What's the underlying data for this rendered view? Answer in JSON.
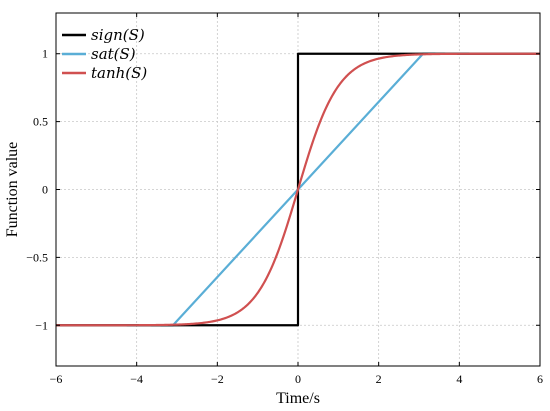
{
  "chart_data": {
    "type": "line",
    "title": "",
    "xlabel": "Time/s",
    "ylabel": "Function value",
    "xlim": [
      -6,
      6
    ],
    "ylim": [
      -1.3,
      1.3
    ],
    "xticks": [
      -6,
      -4,
      -2,
      0,
      2,
      4,
      6
    ],
    "yticks": [
      -1,
      -0.5,
      0,
      0.5,
      1
    ],
    "xtick_labels": [
      "−6",
      "−4",
      "−2",
      "0",
      "2",
      "4",
      "6"
    ],
    "ytick_labels": [
      "−1",
      "−0.5",
      "0",
      "0.5",
      "1"
    ],
    "grid": true,
    "legend_position": "top-left",
    "series": [
      {
        "name": "sign(S)",
        "color": "#000000",
        "x": [
          -6,
          -3,
          -1,
          0,
          0,
          1,
          3,
          6
        ],
        "y": [
          -1,
          -1,
          -1,
          -1,
          1,
          1,
          1,
          1
        ]
      },
      {
        "name": "sat(S)",
        "color": "#5aaed6",
        "x": [
          -6,
          -3.1,
          0,
          3.1,
          6
        ],
        "y": [
          -1,
          -1,
          0,
          1,
          1
        ]
      },
      {
        "name": "tanh(S)",
        "color": "#d05050",
        "x": [
          -6,
          -4,
          -3.1,
          -2.5,
          -2,
          -1.5,
          -1,
          -0.5,
          0,
          0.5,
          1,
          1.5,
          2,
          2.5,
          3.1,
          4,
          6
        ],
        "y": [
          -1,
          -1,
          -0.995,
          -0.98,
          -0.96,
          -0.905,
          -0.76,
          -0.46,
          0,
          0.46,
          0.76,
          0.905,
          0.96,
          0.98,
          0.995,
          1,
          1
        ]
      }
    ]
  }
}
